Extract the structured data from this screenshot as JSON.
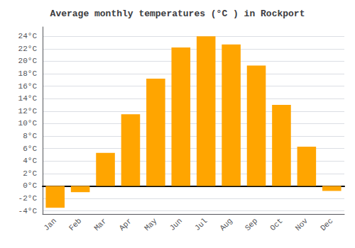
{
  "chart_data": {
    "type": "bar",
    "title": "Average monthly temperatures (°C ) in Rockport",
    "categories": [
      "Jan",
      "Feb",
      "Mar",
      "Apr",
      "May",
      "Jun",
      "Jul",
      "Aug",
      "Sep",
      "Oct",
      "Nov",
      "Dec"
    ],
    "values": [
      -3.5,
      -1.0,
      5.3,
      11.5,
      17.2,
      22.2,
      24.0,
      22.7,
      19.3,
      13.0,
      6.3,
      -0.8
    ],
    "color": "#FFA500",
    "ylim": [
      -4.5,
      25.5
    ],
    "yticks": [
      {
        "value": -4,
        "label": "-4°C"
      },
      {
        "value": -2,
        "label": "-2°C"
      },
      {
        "value": 0,
        "label": "0°C"
      },
      {
        "value": 2,
        "label": "2°C"
      },
      {
        "value": 4,
        "label": "4°C"
      },
      {
        "value": 6,
        "label": "6°C"
      },
      {
        "value": 8,
        "label": "8°C"
      },
      {
        "value": 10,
        "label": "10°C"
      },
      {
        "value": 12,
        "label": "12°C"
      },
      {
        "value": 14,
        "label": "14°C"
      },
      {
        "value": 16,
        "label": "16°C"
      },
      {
        "value": 18,
        "label": "18°C"
      },
      {
        "value": 20,
        "label": "20°C"
      },
      {
        "value": 22,
        "label": "22°C"
      },
      {
        "value": 24,
        "label": "24°C"
      }
    ],
    "grid": true
  }
}
